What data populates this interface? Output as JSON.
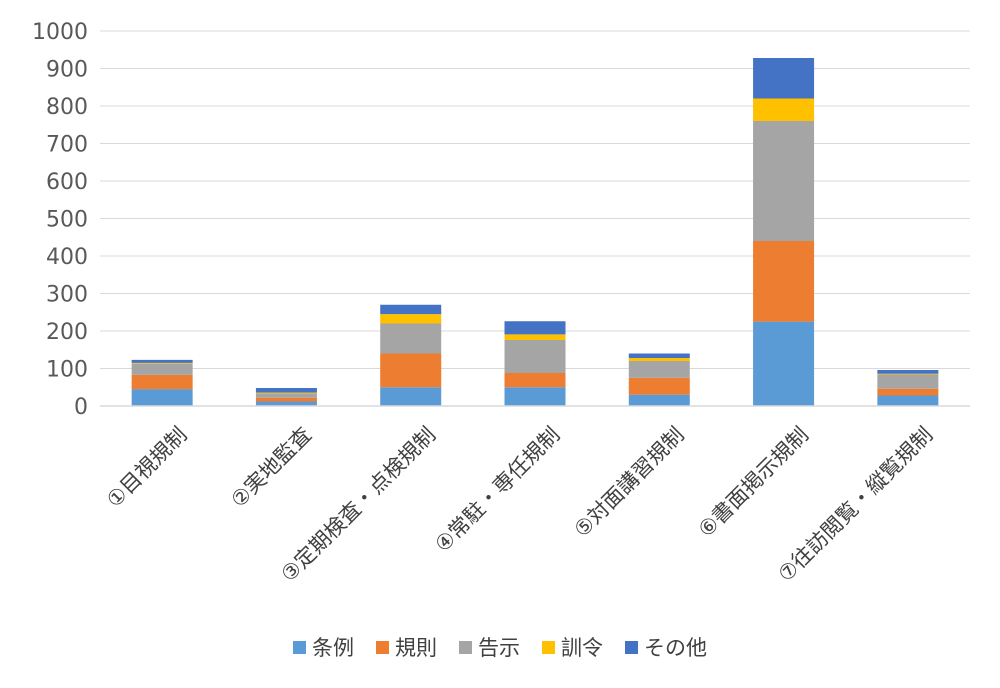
{
  "chart_data": {
    "type": "bar",
    "stacked": true,
    "categories": [
      "①目視規制",
      "②実地監査",
      "③定期検査・点検規制",
      "④常駐・専任規制",
      "⑤対面講習規制",
      "⑥書面掲示規制",
      "⑦往訪閲覧・縦覧規制"
    ],
    "series": [
      {
        "name": "条例",
        "color": "#5B9BD5",
        "values": [
          45,
          12,
          50,
          50,
          30,
          225,
          28
        ]
      },
      {
        "name": "規則",
        "color": "#ED7D31",
        "values": [
          38,
          10,
          90,
          38,
          45,
          215,
          18
        ]
      },
      {
        "name": "告示",
        "color": "#A5A5A5",
        "values": [
          30,
          12,
          80,
          88,
          45,
          320,
          38
        ]
      },
      {
        "name": "訓令",
        "color": "#FFC000",
        "values": [
          2,
          2,
          25,
          15,
          8,
          60,
          2
        ]
      },
      {
        "name": "その他",
        "color": "#4472C4",
        "values": [
          8,
          12,
          25,
          35,
          12,
          108,
          10
        ]
      }
    ],
    "y_ticks": [
      "0",
      "100",
      "200",
      "300",
      "400",
      "500",
      "600",
      "700",
      "800",
      "900",
      "1000"
    ],
    "ylim": [
      0,
      1000
    ],
    "grid": true,
    "legend_position": "bottom",
    "title": "",
    "xlabel": "",
    "ylabel": ""
  }
}
